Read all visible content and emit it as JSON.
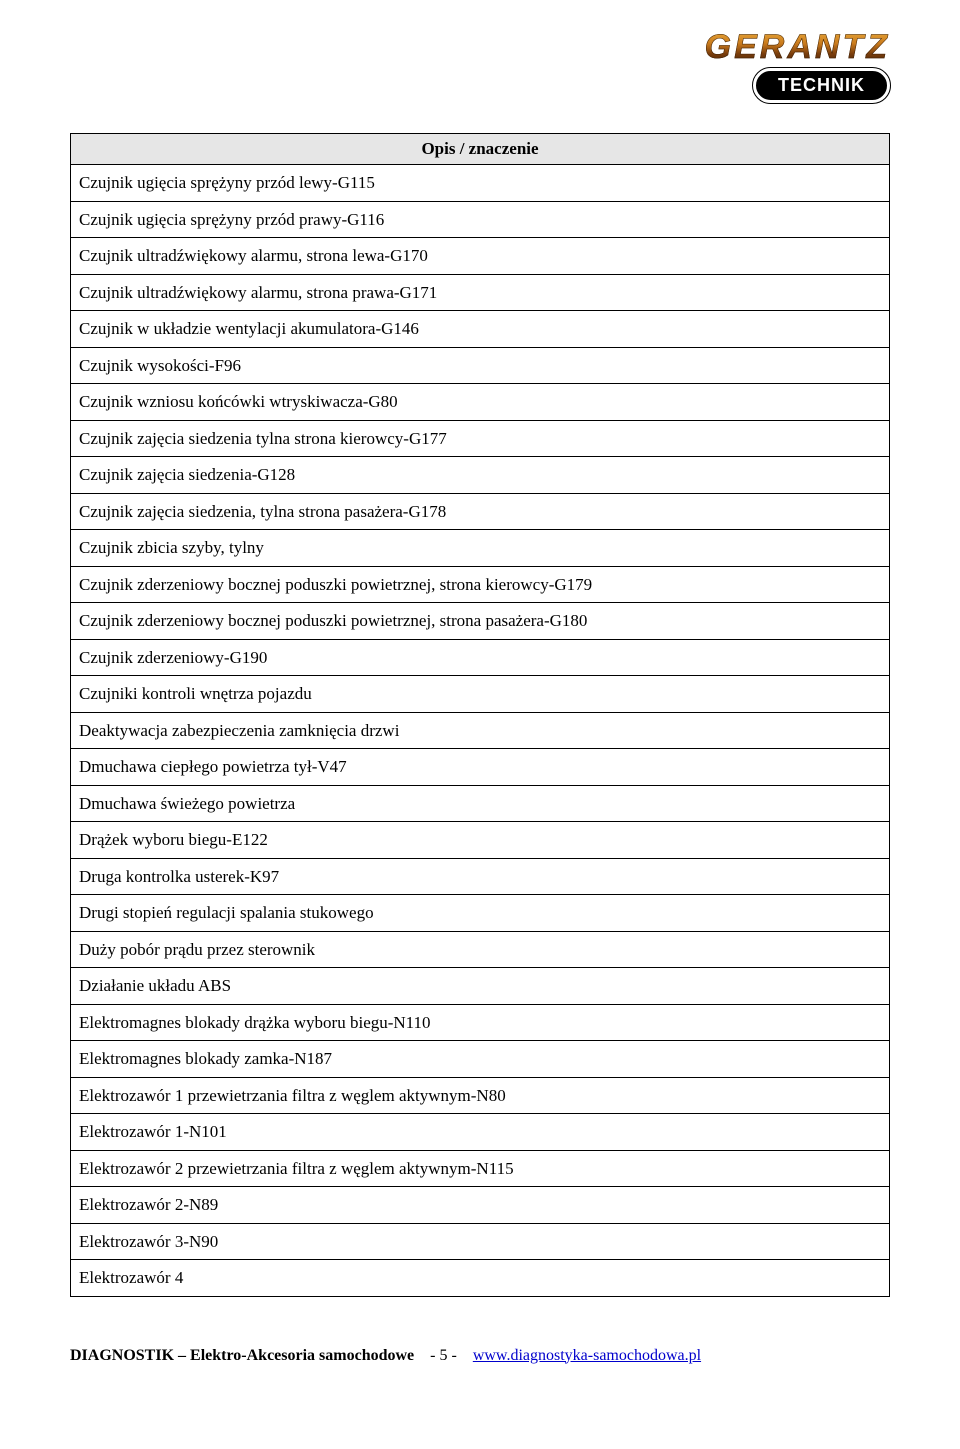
{
  "logo": {
    "brand": "GERANTZ",
    "sub": "TECHNIK"
  },
  "table": {
    "header": "Opis / znaczenie",
    "rows": [
      "Czujnik ugięcia sprężyny przód lewy-G115",
      "Czujnik ugięcia sprężyny przód prawy-G116",
      "Czujnik ultradźwiękowy alarmu, strona lewa-G170",
      "Czujnik ultradźwiękowy alarmu, strona prawa-G171",
      "Czujnik w układzie wentylacji akumulatora-G146",
      "Czujnik wysokości-F96",
      "Czujnik wzniosu końcówki wtryskiwacza-G80",
      "Czujnik zajęcia siedzenia tylna strona kierowcy-G177",
      "Czujnik zajęcia siedzenia-G128",
      "Czujnik zajęcia siedzenia, tylna strona pasażera-G178",
      "Czujnik zbicia szyby, tylny",
      "Czujnik zderzeniowy bocznej poduszki powietrznej, strona kierowcy-G179",
      "Czujnik zderzeniowy bocznej poduszki powietrznej, strona pasażera-G180",
      "Czujnik zderzeniowy-G190",
      "Czujniki kontroli wnętrza pojazdu",
      "Deaktywacja zabezpieczenia zamknięcia drzwi",
      "Dmuchawa ciepłego powietrza tył-V47",
      "Dmuchawa świeżego powietrza",
      "Drążek wyboru biegu-E122",
      "Druga kontrolka usterek-K97",
      "Drugi stopień regulacji spalania stukowego",
      "Duży pobór prądu przez sterownik",
      "Działanie układu ABS",
      "Elektromagnes blokady drążka wyboru biegu-N110",
      "Elektromagnes blokady zamka-N187",
      "Elektrozawór 1 przewietrzania filtra z węglem aktywnym-N80",
      "Elektrozawór 1-N101",
      "Elektrozawór 2 przewietrzania filtra z węglem aktywnym-N115",
      "Elektrozawór 2-N89",
      "Elektrozawór 3-N90",
      "Elektrozawór 4"
    ]
  },
  "footer": {
    "left": "DIAGNOSTIK – Elektro-Akcesoria samochodowe",
    "page": "- 5 -",
    "link_text": "www.diagnostyka-samochodowa.pl"
  }
}
